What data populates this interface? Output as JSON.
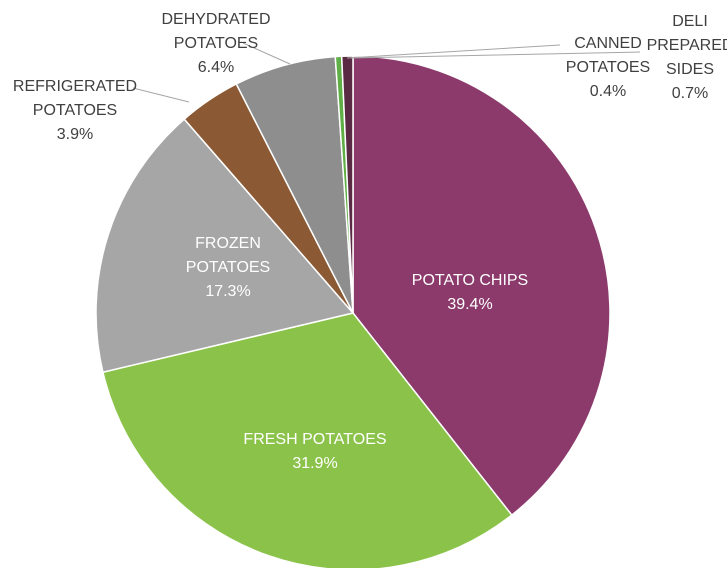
{
  "chart_data": {
    "type": "pie",
    "title": "",
    "start_angle_deg": 0,
    "direction": "clockwise",
    "series": [
      {
        "values": [
          39.4,
          31.9,
          17.3,
          3.9,
          6.4,
          0.4,
          0.7
        ]
      }
    ],
    "slices": [
      {
        "key": "potato-chips",
        "lines": [
          "POTATO CHIPS"
        ],
        "value": 39.4,
        "value_label": "39.4%",
        "color": "#8B3A6B",
        "label_color": "#ffffff"
      },
      {
        "key": "fresh-potatoes",
        "lines": [
          "FRESH POTATOES"
        ],
        "value": 31.9,
        "value_label": "31.9%",
        "color": "#8BC34A",
        "label_color": "#ffffff"
      },
      {
        "key": "frozen-potatoes",
        "lines": [
          "FROZEN",
          "POTATOES"
        ],
        "value": 17.3,
        "value_label": "17.3%",
        "color": "#A6A6A6",
        "label_color": "#ffffff"
      },
      {
        "key": "refrigerated-potatoes",
        "lines": [
          "REFRIGERATED",
          "POTATOES"
        ],
        "value": 3.9,
        "value_label": "3.9%",
        "color": "#8B5A35",
        "label_color": "#404040"
      },
      {
        "key": "dehydrated-potatoes",
        "lines": [
          "DEHYDRATED",
          "POTATOES"
        ],
        "value": 6.4,
        "value_label": "6.4%",
        "color": "#8E8E8E",
        "label_color": "#404040"
      },
      {
        "key": "canned-potatoes",
        "lines": [
          "CANNED",
          "POTATOES"
        ],
        "value": 0.4,
        "value_label": "0.4%",
        "color": "#5FAF46",
        "label_color": "#404040"
      },
      {
        "key": "deli-prepared-sides",
        "lines": [
          "DELI",
          "PREPARED",
          "SIDES"
        ],
        "value": 0.7,
        "value_label": "0.7%",
        "color": "#5A2A45",
        "label_color": "#404040"
      }
    ]
  }
}
